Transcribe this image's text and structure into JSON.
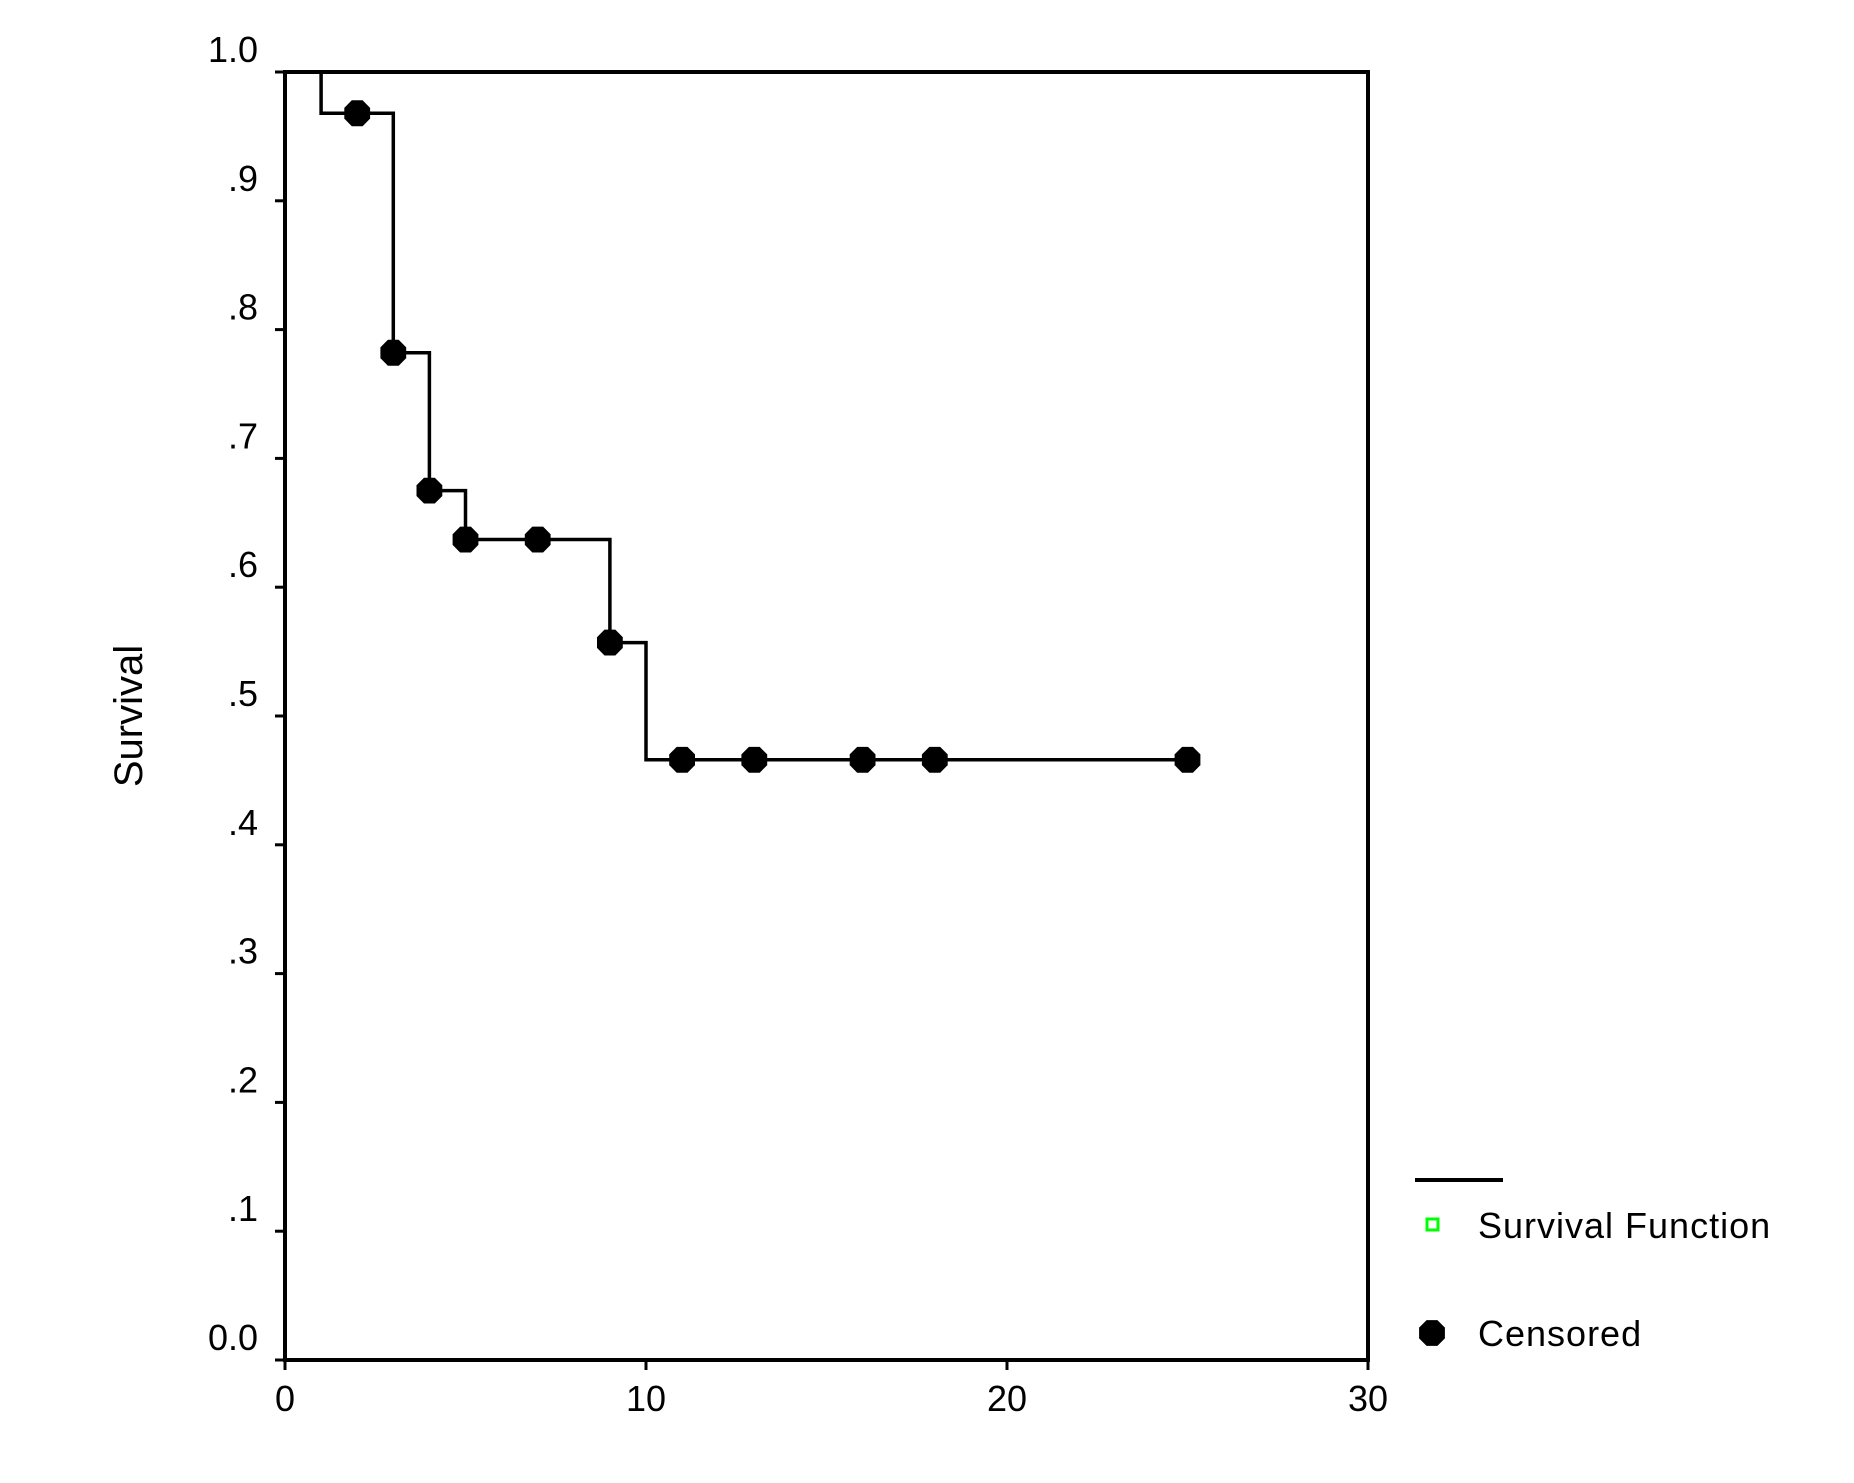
{
  "chart_data": {
    "type": "line",
    "subtype": "kaplan-meier-step",
    "title": "",
    "xlabel": "",
    "ylabel": "Survival",
    "xlim": [
      0,
      30
    ],
    "ylim": [
      0.0,
      1.0
    ],
    "x_ticks": [
      0,
      10,
      20,
      30
    ],
    "x_tick_labels": [
      "0",
      "10",
      "20",
      "30"
    ],
    "y_ticks": [
      0.0,
      0.1,
      0.2,
      0.3,
      0.4,
      0.5,
      0.6,
      0.7,
      0.8,
      0.9,
      1.0
    ],
    "y_tick_labels": [
      "0.0",
      ".1",
      ".2",
      ".3",
      ".4",
      ".5",
      ".6",
      ".7",
      ".8",
      ".9",
      "1.0"
    ],
    "grid": false,
    "legend_position": "right-bottom",
    "series": [
      {
        "name": "Survival Function",
        "kind": "step",
        "color": "#000000",
        "legend_marker_color": "#00ff00",
        "x": [
          0,
          1,
          3,
          4,
          5,
          9,
          10,
          25
        ],
        "y": [
          1.0,
          0.968,
          0.782,
          0.675,
          0.637,
          0.557,
          0.466,
          0.466
        ]
      },
      {
        "name": "Censored",
        "kind": "scatter",
        "color": "#000000",
        "x": [
          2,
          3,
          4,
          5,
          7,
          9,
          11,
          13,
          16,
          18,
          25
        ],
        "y": [
          0.968,
          0.782,
          0.675,
          0.637,
          0.637,
          0.557,
          0.466,
          0.466,
          0.466,
          0.466,
          0.466
        ]
      }
    ]
  },
  "legend": {
    "items": [
      {
        "label": "Survival Function",
        "icon": "green-square-outline"
      },
      {
        "label": "Censored",
        "icon": "black-filled-octagon"
      }
    ]
  },
  "axes": {
    "ylabel": "Survival"
  }
}
